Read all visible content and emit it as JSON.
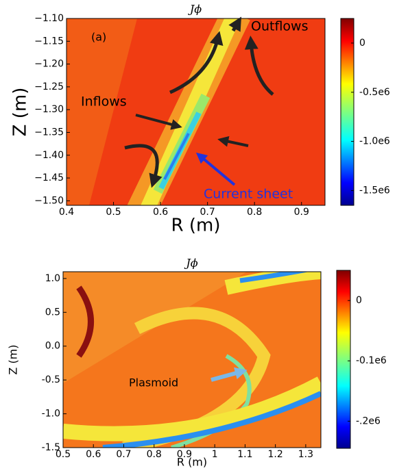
{
  "chart_data": [
    {
      "type": "heatmap",
      "title": "Jϕ",
      "x_label": "R (m)",
      "y_label": "Z (m)",
      "xlim": [
        0.4,
        0.95
      ],
      "xticks": [
        0.4,
        0.5,
        0.6,
        0.7,
        0.8,
        0.9
      ],
      "ylim": [
        -1.51,
        -1.1
      ],
      "yticks": [
        {
          "value": -1.5,
          "label": "−1.50"
        },
        {
          "value": -1.45,
          "label": "−1.45"
        },
        {
          "value": -1.4,
          "label": "−1.40"
        },
        {
          "value": -1.35,
          "label": "−1.35"
        },
        {
          "value": -1.3,
          "label": "−1.30"
        },
        {
          "value": -1.25,
          "label": "−1.25"
        },
        {
          "value": -1.2,
          "label": "−1.20"
        },
        {
          "value": -1.15,
          "label": "−1.15"
        },
        {
          "value": -1.1,
          "label": "−1.10"
        }
      ],
      "colorbar": {
        "lim": [
          -1650000.0,
          250000.0
        ],
        "ticks": [
          0,
          {
            "value": -500000,
            "label": "-0.5e6"
          },
          {
            "value": -1000000,
            "label": "-1.0e6"
          },
          {
            "value": -1500000,
            "label": "-1.5e6"
          }
        ]
      },
      "annotations": [
        "(a)",
        "Outflows",
        "Inflows",
        "Current sheet"
      ]
    },
    {
      "type": "heatmap",
      "title": "Jϕ",
      "x_label": "R (m)",
      "y_label": "Z (m)",
      "xlim": [
        0.5,
        1.35
      ],
      "xticks": [
        0.5,
        0.6,
        0.7,
        0.8,
        0.9,
        1.0,
        1.1,
        1.2,
        1.3
      ],
      "ylim": [
        -1.5,
        1.1
      ],
      "yticks": [
        -1.5,
        {
          "value": -1,
          "label": "-1.0"
        },
        -0.5,
        {
          "value": 0,
          "label": "0.0"
        },
        0.5,
        {
          "value": 1,
          "label": "1.0"
        }
      ],
      "colorbar": {
        "lim": [
          -245000,
          50000
        ],
        "ticks": [
          0,
          {
            "value": -100000,
            "label": "-0.1e6"
          },
          {
            "value": -200000,
            "label": "-.2e6"
          }
        ]
      },
      "annotations": [
        "Plasmoid"
      ]
    }
  ]
}
